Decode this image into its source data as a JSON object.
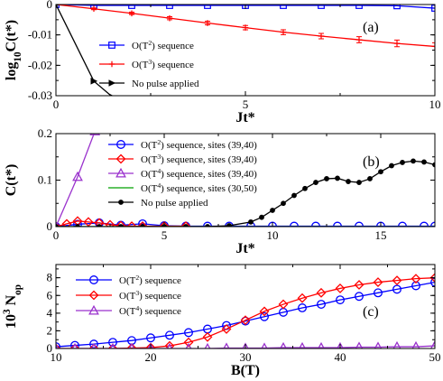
{
  "chart_data": [
    {
      "type": "line",
      "panel_label": "(a)",
      "xlabel": "Jt*",
      "ylabel": "log10C(t*)",
      "xlim": [
        0,
        10
      ],
      "ylim": [
        -0.03,
        0
      ],
      "xticks": [
        0,
        5,
        10
      ],
      "yticks": [
        0,
        -0.01,
        -0.02,
        -0.03
      ],
      "xtick_labels": [
        "0",
        "5",
        "10"
      ],
      "ytick_labels": [
        "0",
        "-0.01",
        "-0.02",
        "-0.03"
      ],
      "legend_position": "top-left",
      "series": [
        {
          "name": "O(T²) sequence",
          "color": "#0000ff",
          "marker": "square",
          "x": [
            0,
            1,
            2,
            3,
            4,
            5,
            6,
            7,
            8,
            9,
            10
          ],
          "y": [
            0,
            -0.0003,
            -0.0003,
            -0.0003,
            -0.0003,
            -0.0003,
            -0.0003,
            -0.0003,
            -0.0003,
            -0.0004,
            -0.0012
          ]
        },
        {
          "name": "O(T³) sequence",
          "color": "#ff0000",
          "marker": "plus",
          "x": [
            0,
            1,
            2,
            3,
            4,
            5,
            6,
            7,
            8,
            9,
            10
          ],
          "y": [
            0,
            -0.0014,
            -0.0029,
            -0.0045,
            -0.0061,
            -0.0076,
            -0.0091,
            -0.0104,
            -0.0116,
            -0.0128,
            -0.0138
          ],
          "error": [
            0,
            0.0003,
            0.0004,
            0.0005,
            0.0006,
            0.0007,
            0.0008,
            0.0009,
            0.001,
            0.0011,
            0.0012
          ]
        },
        {
          "name": "No pulse applied",
          "color": "#000000",
          "marker": "triangle-right",
          "x": [
            0,
            1,
            1.5
          ],
          "y": [
            0,
            -0.0252,
            -0.0305
          ]
        }
      ]
    },
    {
      "type": "line",
      "panel_label": "(b)",
      "xlabel": "Jt*",
      "ylabel": "C(t*)",
      "xlim": [
        0,
        17.5
      ],
      "ylim": [
        0,
        0.2
      ],
      "xticks": [
        0,
        5,
        10,
        15
      ],
      "yticks": [
        0,
        0.1,
        0.2
      ],
      "xtick_labels": [
        "0",
        "5",
        "10",
        "15"
      ],
      "ytick_labels": [
        "0",
        "0.1",
        "0.2"
      ],
      "legend_position": "top-left",
      "series": [
        {
          "name": "O(T²) sequence, sites (39,40)",
          "color": "#0000ff",
          "marker": "circle",
          "x": [
            0,
            1,
            2,
            3,
            4,
            5,
            6,
            7,
            8,
            9,
            10,
            11,
            12,
            13,
            14,
            15,
            16,
            17,
            17.5
          ],
          "y": [
            0,
            0.005,
            0.008,
            0.003,
            0.006,
            0.002,
            0.001,
            0.001,
            0.001,
            0.001,
            0.001,
            0.001,
            0.001,
            0.001,
            0.001,
            0.001,
            0.001,
            0.001,
            0.001
          ]
        },
        {
          "name": "O(T³) sequence, sites (39,40)",
          "color": "#ff0000",
          "marker": "diamond",
          "x": [
            0,
            0.5,
            1,
            1.5,
            2,
            2.5,
            3,
            3.5,
            4,
            5,
            6
          ],
          "y": [
            0,
            0.006,
            0.012,
            0.01,
            0.008,
            0.004,
            0.002,
            0.001,
            0.001,
            0.001,
            0.001
          ]
        },
        {
          "name": "O(T⁴) sequence, sites (39,40)",
          "color": "#9a32cd",
          "marker": "triangle-up",
          "x": [
            0,
            1,
            1.8
          ],
          "y": [
            0,
            0.107,
            0.205
          ]
        },
        {
          "name": "O(T⁴) sequence, sites (30,50)",
          "color": "#00a000",
          "marker": "none",
          "x": [
            0,
            17.5
          ],
          "y": [
            0,
            0
          ]
        },
        {
          "name": "No pulse applied",
          "color": "#000000",
          "marker": "circle-filled",
          "x": [
            0,
            1,
            2,
            3,
            4,
            5,
            6,
            7,
            8,
            9,
            9.5,
            10,
            10.5,
            11,
            11.5,
            12,
            12.5,
            13,
            13.5,
            14,
            14.5,
            15,
            15.5,
            16,
            16.5,
            17,
            17.5
          ],
          "y": [
            0,
            0.0,
            0.0,
            0.0,
            0.0,
            0.0,
            0.0,
            0.0,
            0.002,
            0.01,
            0.02,
            0.035,
            0.05,
            0.067,
            0.082,
            0.095,
            0.103,
            0.104,
            0.097,
            0.095,
            0.103,
            0.118,
            0.131,
            0.138,
            0.141,
            0.139,
            0.133
          ]
        }
      ]
    },
    {
      "type": "line",
      "panel_label": "(c)",
      "xlabel": "B(T)",
      "ylabel": "10³ N_op",
      "xlim": [
        10,
        50
      ],
      "ylim": [
        0,
        9.5
      ],
      "xticks": [
        10,
        20,
        30,
        40,
        50
      ],
      "yticks": [
        0,
        2,
        4,
        6,
        8
      ],
      "xtick_labels": [
        "10",
        "20",
        "30",
        "40",
        "50"
      ],
      "ytick_labels": [
        "0",
        "2",
        "4",
        "6",
        "8"
      ],
      "legend_position": "top-left",
      "series": [
        {
          "name": "O(T²) sequence",
          "color": "#0000ff",
          "marker": "circle",
          "x": [
            10,
            12,
            14,
            16,
            18,
            20,
            22,
            24,
            26,
            28,
            30,
            32,
            34,
            36,
            38,
            40,
            42,
            44,
            46,
            48,
            50
          ],
          "y": [
            0.2,
            0.35,
            0.5,
            0.7,
            0.9,
            1.2,
            1.5,
            1.8,
            2.2,
            2.6,
            3.1,
            3.6,
            4.1,
            4.6,
            5.0,
            5.5,
            5.9,
            6.3,
            6.7,
            7.1,
            7.5
          ]
        },
        {
          "name": "O(T³) sequence",
          "color": "#ff0000",
          "marker": "diamond",
          "x": [
            10,
            12,
            14,
            16,
            18,
            20,
            22,
            24,
            26,
            28,
            30,
            32,
            34,
            36,
            38,
            40,
            42,
            44,
            46,
            48,
            50
          ],
          "y": [
            0,
            0,
            0,
            0,
            0.05,
            0.1,
            0.3,
            0.7,
            1.3,
            2.2,
            3.2,
            4.2,
            5.0,
            5.7,
            6.3,
            6.8,
            7.2,
            7.5,
            7.7,
            7.9,
            8.0
          ]
        },
        {
          "name": "O(T⁴) sequence",
          "color": "#9a32cd",
          "marker": "triangle-up",
          "x": [
            10,
            12,
            14,
            16,
            18,
            20,
            22,
            24,
            26,
            28,
            30,
            32,
            34,
            36,
            38,
            40,
            42,
            44,
            46,
            48,
            50
          ],
          "y": [
            0,
            0,
            0,
            0,
            0,
            0,
            0,
            0,
            0,
            0.05,
            0.05,
            0.05,
            0.1,
            0.1,
            0.1,
            0.1,
            0.15,
            0.15,
            0.2,
            0.2,
            0.3
          ]
        }
      ]
    }
  ]
}
